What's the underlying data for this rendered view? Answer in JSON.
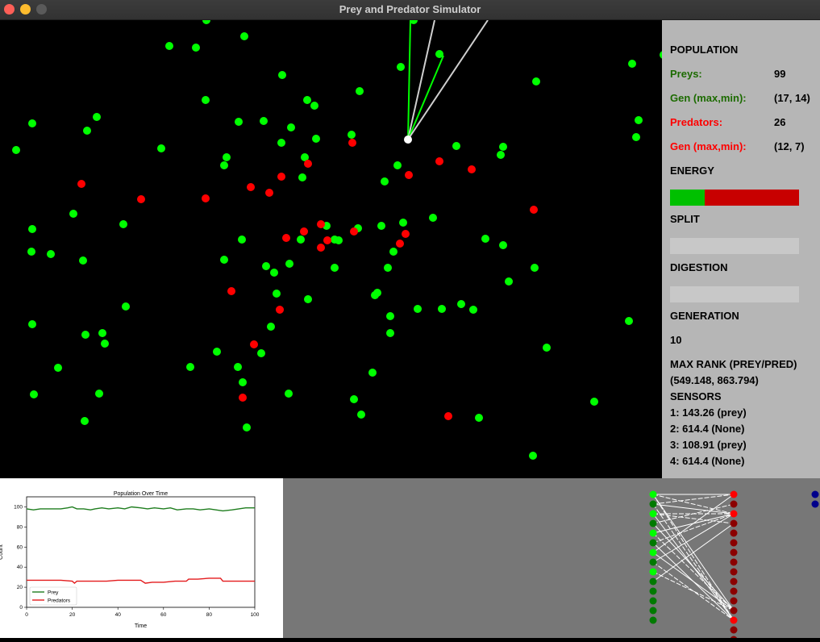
{
  "window": {
    "title": "Prey and Predator Simulator"
  },
  "stats": {
    "population_label": "POPULATION",
    "preys_label": "Preys:",
    "preys_value": "99",
    "prey_gen_label": "Gen (max,min):",
    "prey_gen_value": "(17, 14)",
    "predators_label": "Predators:",
    "predators_value": "26",
    "pred_gen_label": "Gen (max,min):",
    "pred_gen_value": "(12, 7)",
    "energy_label": "ENERGY",
    "energy_fraction": 0.27,
    "split_label": "SPLIT",
    "digestion_label": "DIGESTION",
    "generation_label": "GENERATION",
    "generation_value": "10",
    "max_rank_label": "MAX RANK (PREY/PRED)",
    "max_rank_value": "(549.148, 863.794)",
    "sensors_label": "SENSORS",
    "sensors": [
      "1: 143.26 (prey)",
      "2: 614.4 (None)",
      "3: 108.91 (prey)",
      "4: 614.4 (None)"
    ]
  },
  "colors": {
    "prey": "#00ff00",
    "predator": "#ff0000",
    "selected": "#ffffff",
    "energy_fill": "#00c000",
    "energy_empty": "#c80000"
  },
  "chart_data": {
    "type": "line",
    "title": "Population Over Time",
    "xlabel": "Time",
    "ylabel": "Count",
    "xlim": [
      0,
      100
    ],
    "ylim": [
      0,
      110
    ],
    "xticks": [
      0,
      20,
      40,
      60,
      80,
      100
    ],
    "yticks": [
      0,
      20,
      40,
      60,
      80,
      100
    ],
    "legend": "lower-left",
    "series": [
      {
        "name": "Prey",
        "color": "#1e7d1e",
        "x": [
          0,
          3,
          6,
          10,
          15,
          18,
          20,
          22,
          25,
          28,
          30,
          33,
          36,
          40,
          43,
          46,
          50,
          53,
          56,
          60,
          63,
          66,
          70,
          73,
          76,
          80,
          83,
          86,
          90,
          93,
          96,
          100
        ],
        "values": [
          98,
          97,
          98,
          98,
          98,
          99,
          100,
          98,
          98,
          97,
          98,
          99,
          98,
          99,
          98,
          100,
          99,
          98,
          99,
          98,
          99,
          97,
          98,
          98,
          97,
          98,
          97,
          96,
          97,
          98,
          99,
          99
        ]
      },
      {
        "name": "Predators",
        "color": "#e31a1c",
        "x": [
          0,
          5,
          10,
          15,
          20,
          21,
          22,
          25,
          30,
          35,
          40,
          45,
          50,
          52,
          55,
          60,
          65,
          70,
          71,
          72,
          75,
          80,
          85,
          86,
          90,
          95,
          100
        ],
        "values": [
          27,
          27,
          27,
          27,
          26,
          24,
          26,
          26,
          26,
          26,
          27,
          27,
          27,
          24,
          25,
          25,
          26,
          26,
          28,
          28,
          28,
          29,
          29,
          26,
          26,
          26,
          26
        ]
      }
    ]
  },
  "network": {
    "input_count": 14,
    "hidden_count": 16,
    "output_count": 2
  }
}
